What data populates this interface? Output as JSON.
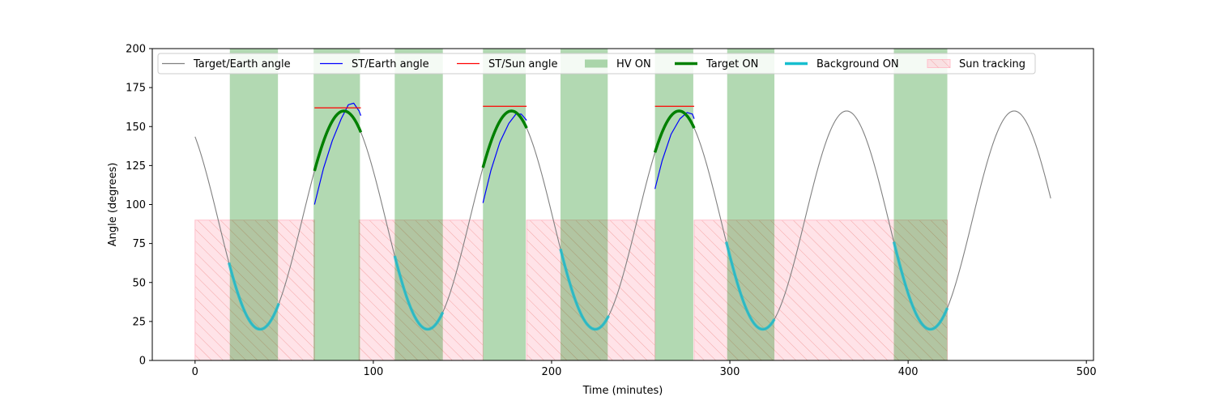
{
  "chart_data": {
    "type": "line",
    "title": "",
    "xlabel": "Time (minutes)",
    "ylabel": "Angle (degrees)",
    "xlim": [
      -24,
      504
    ],
    "ylim": [
      0,
      200
    ],
    "xticks": [
      0,
      100,
      200,
      300,
      400,
      500
    ],
    "yticks": [
      0,
      25,
      50,
      75,
      100,
      125,
      150,
      175,
      200
    ],
    "grid": false,
    "legend_position": "top",
    "colors": {
      "target_earth": "#808080",
      "st_earth": "#0000ff",
      "st_sun": "#ff0000",
      "hv_on": "#008000",
      "target_on": "#008000",
      "background_on": "#17becf",
      "sun_tracking_fill": "#ffc0cb",
      "sun_tracking_hatch": "#f4a4a4"
    },
    "legend": [
      {
        "key": "target_earth",
        "label": "Target/Earth angle",
        "kind": "line"
      },
      {
        "key": "st_earth",
        "label": "ST/Earth angle",
        "kind": "line"
      },
      {
        "key": "st_sun",
        "label": "ST/Sun angle",
        "kind": "line"
      },
      {
        "key": "hv_on",
        "label": "HV ON",
        "kind": "patch"
      },
      {
        "key": "target_on",
        "label": "Target ON",
        "kind": "thick"
      },
      {
        "key": "background_on",
        "label": "Background ON",
        "kind": "thick"
      },
      {
        "key": "sun_tracking",
        "label": "Sun tracking",
        "kind": "hatch"
      }
    ],
    "target_earth_curve": {
      "mean": 90,
      "amplitude": 70,
      "period_min": 94,
      "phase_at_min": 36.5,
      "x_range": [
        0,
        480
      ]
    },
    "hv_on_intervals": [
      [
        19.5,
        46.5
      ],
      [
        66.5,
        92.5
      ],
      [
        112,
        139
      ],
      [
        161.5,
        185.5
      ],
      [
        205,
        231.5
      ],
      [
        258,
        279.5
      ],
      [
        298.5,
        325
      ],
      [
        392,
        422
      ]
    ],
    "target_on_intervals": [
      [
        67,
        93
      ],
      [
        161.5,
        186
      ],
      [
        258,
        280
      ]
    ],
    "background_on_intervals": [
      [
        19,
        47
      ],
      [
        112,
        139
      ],
      [
        205,
        232
      ],
      [
        298,
        325
      ],
      [
        392,
        422
      ]
    ],
    "sun_tracking_intervals": [
      [
        0,
        67
      ],
      [
        92,
        161.5
      ],
      [
        186,
        258
      ],
      [
        280,
        422
      ]
    ],
    "sun_tracking_ylim": [
      0,
      90
    ],
    "st_earth_segments": [
      {
        "x": [
          67,
          72,
          77,
          82,
          86,
          89,
          92,
          93
        ],
        "y": [
          100,
          123,
          141,
          155,
          164,
          165,
          160,
          157
        ]
      },
      {
        "x": [
          161.5,
          166,
          171,
          176,
          180,
          183,
          186
        ],
        "y": [
          101,
          122,
          140,
          152,
          158,
          158,
          154
        ]
      },
      {
        "x": [
          258,
          262,
          267,
          272,
          276,
          279,
          280
        ],
        "y": [
          110,
          128,
          145,
          155,
          159,
          158,
          155
        ]
      }
    ],
    "st_sun_segments": [
      {
        "x": [
          67,
          93
        ],
        "y": [
          162,
          162
        ]
      },
      {
        "x": [
          161.5,
          186
        ],
        "y": [
          163,
          163
        ]
      },
      {
        "x": [
          258,
          280
        ],
        "y": [
          163,
          163
        ]
      }
    ]
  }
}
